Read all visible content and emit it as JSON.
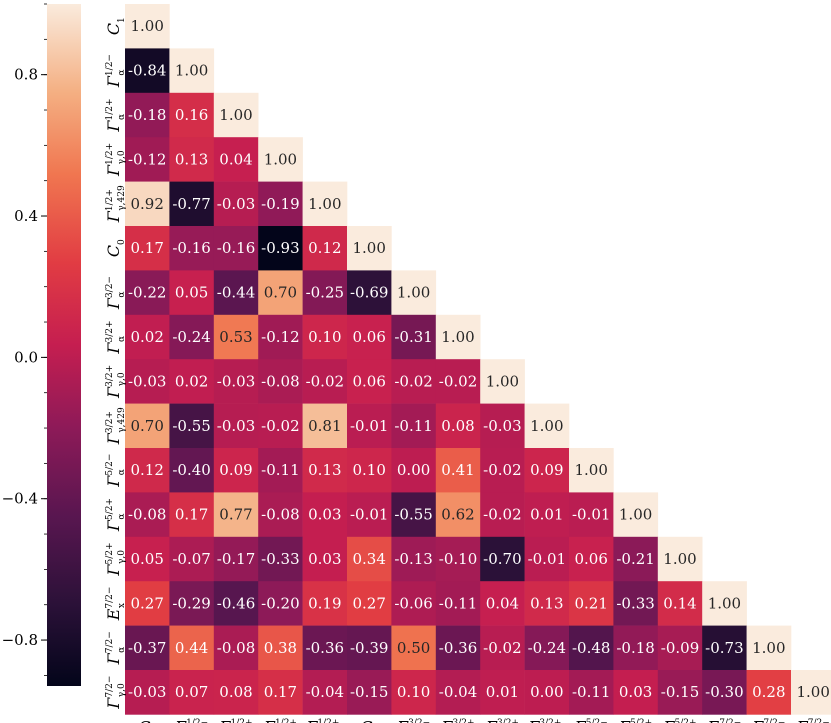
{
  "chart_data": {
    "type": "heatmap",
    "title": "",
    "mask": "upper-triangle",
    "labels": [
      {
        "base": "C",
        "sub": "1",
        "sup": ""
      },
      {
        "base": "Γ",
        "sub": "α",
        "sup": "1/2−"
      },
      {
        "base": "Γ",
        "sub": "α",
        "sup": "1/2+"
      },
      {
        "base": "Γ",
        "sub": "γ,0",
        "sup": "1/2+"
      },
      {
        "base": "Γ",
        "sub": "γ,429",
        "sup": "1/2+"
      },
      {
        "base": "C",
        "sub": "0",
        "sup": ""
      },
      {
        "base": "Γ",
        "sub": "α",
        "sup": "3/2−"
      },
      {
        "base": "Γ",
        "sub": "α",
        "sup": "3/2+"
      },
      {
        "base": "Γ",
        "sub": "γ,0",
        "sup": "3/2+"
      },
      {
        "base": "Γ",
        "sub": "γ,429",
        "sup": "3/2+"
      },
      {
        "base": "Γ",
        "sub": "α",
        "sup": "5/2−"
      },
      {
        "base": "Γ",
        "sub": "α",
        "sup": "5/2+"
      },
      {
        "base": "Γ",
        "sub": "γ,0",
        "sup": "5/2+"
      },
      {
        "base": "E",
        "sub": "x",
        "sup": "7/2−"
      },
      {
        "base": "Γ",
        "sub": "α",
        "sup": "7/2−"
      },
      {
        "base": "Γ",
        "sub": "γ,0",
        "sup": "7/2−"
      }
    ],
    "values": [
      [
        1.0
      ],
      [
        -0.84,
        1.0
      ],
      [
        -0.18,
        0.16,
        1.0
      ],
      [
        -0.12,
        0.13,
        0.04,
        1.0
      ],
      [
        0.92,
        -0.77,
        -0.03,
        -0.19,
        1.0
      ],
      [
        0.17,
        -0.16,
        -0.16,
        -0.93,
        0.12,
        1.0
      ],
      [
        -0.22,
        0.05,
        -0.44,
        0.7,
        -0.25,
        -0.69,
        1.0
      ],
      [
        0.02,
        -0.24,
        0.53,
        -0.12,
        0.1,
        0.06,
        -0.31,
        1.0
      ],
      [
        -0.03,
        0.02,
        -0.03,
        -0.08,
        -0.02,
        0.06,
        -0.02,
        -0.02,
        1.0
      ],
      [
        0.7,
        -0.55,
        -0.03,
        -0.02,
        0.81,
        -0.01,
        -0.11,
        0.08,
        -0.03,
        1.0
      ],
      [
        0.12,
        -0.4,
        0.09,
        -0.11,
        0.13,
        0.1,
        0.0,
        0.41,
        -0.02,
        0.09,
        1.0
      ],
      [
        -0.08,
        0.17,
        0.77,
        -0.08,
        0.03,
        -0.01,
        -0.55,
        0.62,
        -0.02,
        0.01,
        -0.01,
        1.0
      ],
      [
        0.05,
        -0.07,
        -0.17,
        -0.33,
        0.03,
        0.34,
        -0.13,
        -0.1,
        -0.7,
        -0.01,
        0.06,
        -0.21,
        1.0
      ],
      [
        0.27,
        -0.29,
        -0.46,
        -0.2,
        0.19,
        0.27,
        -0.06,
        -0.11,
        0.04,
        0.13,
        0.21,
        -0.33,
        0.14,
        1.0
      ],
      [
        -0.37,
        0.44,
        -0.08,
        0.38,
        -0.36,
        -0.39,
        0.5,
        -0.36,
        -0.02,
        -0.24,
        -0.48,
        -0.18,
        -0.09,
        -0.73,
        1.0
      ],
      [
        -0.03,
        0.07,
        0.08,
        0.17,
        -0.04,
        -0.15,
        0.1,
        -0.04,
        0.01,
        0.0,
        -0.11,
        0.03,
        -0.15,
        -0.3,
        0.28,
        1.0
      ]
    ],
    "colorbar": {
      "range": [
        -0.93,
        1.0
      ],
      "ticks": [
        {
          "value": 0.8,
          "label": "0.8"
        },
        {
          "value": 0.4,
          "label": "0.4"
        },
        {
          "value": 0.0,
          "label": "0.0"
        },
        {
          "value": -0.4,
          "label": "−0.4"
        },
        {
          "value": -0.8,
          "label": "−0.8"
        }
      ],
      "colormap": "rocket",
      "placement": "left"
    }
  }
}
